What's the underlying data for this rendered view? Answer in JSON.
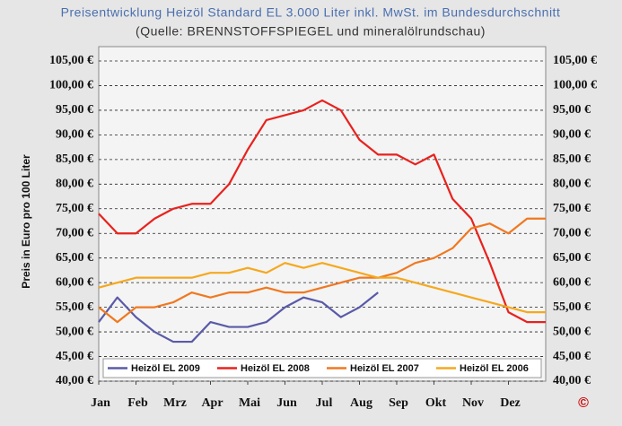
{
  "chart_data": {
    "type": "line",
    "title": "Preisentwicklung Heizöl Standard EL 3.000 Liter inkl. MwSt. im Bundesdurchschnitt",
    "subtitle": "(Quelle: BRENNSTOFFSPIEGEL und mineralölrundschau)",
    "y_label": "Preis in Euro pro 100 Liter",
    "logo_text": "©",
    "x": [
      0,
      0.5,
      1,
      1.5,
      2,
      2.5,
      3,
      3.5,
      4,
      4.5,
      5,
      5.5,
      6,
      6.5,
      7,
      7.5,
      8,
      8.5,
      9,
      9.5,
      10,
      10.5,
      11,
      11.5,
      12
    ],
    "xlim": [
      0,
      12
    ],
    "xticks": [
      {
        "value": 0,
        "label": "Jan"
      },
      {
        "value": 1,
        "label": "Feb"
      },
      {
        "value": 2,
        "label": "Mrz"
      },
      {
        "value": 3,
        "label": "Apr"
      },
      {
        "value": 4,
        "label": "Mai"
      },
      {
        "value": 5,
        "label": "Jun"
      },
      {
        "value": 6,
        "label": "Jul"
      },
      {
        "value": 7,
        "label": "Aug"
      },
      {
        "value": 8,
        "label": "Sep"
      },
      {
        "value": 9,
        "label": "Okt"
      },
      {
        "value": 10,
        "label": "Nov"
      },
      {
        "value": 11,
        "label": "Dez"
      }
    ],
    "ylim": [
      40,
      105
    ],
    "yticks": [
      {
        "value": 40,
        "label": "40,00 €"
      },
      {
        "value": 45,
        "label": "45,00 €"
      },
      {
        "value": 50,
        "label": "50,00 €"
      },
      {
        "value": 55,
        "label": "55,00 €"
      },
      {
        "value": 60,
        "label": "60,00 €"
      },
      {
        "value": 65,
        "label": "65,00 €"
      },
      {
        "value": 70,
        "label": "70,00 €"
      },
      {
        "value": 75,
        "label": "75,00 €"
      },
      {
        "value": 80,
        "label": "80,00 €"
      },
      {
        "value": 85,
        "label": "85,00 €"
      },
      {
        "value": 90,
        "label": "90,00 €"
      },
      {
        "value": 95,
        "label": "95,00 €"
      },
      {
        "value": 100,
        "label": "100,00 €"
      },
      {
        "value": 105,
        "label": "105,00 €"
      }
    ],
    "grid": true,
    "legend": "bottom",
    "series": [
      {
        "name": "Heizöl EL 2009",
        "color": "#5a5aa8",
        "values": [
          52,
          57,
          53,
          50,
          48,
          48,
          52,
          51,
          51,
          52,
          55,
          57,
          56,
          53,
          55,
          58,
          null,
          null,
          null,
          null,
          null,
          null,
          null,
          null,
          null
        ]
      },
      {
        "name": "Heizöl EL 2008",
        "color": "#e8221e",
        "values": [
          74,
          70,
          70,
          73,
          75,
          76,
          76,
          80,
          87,
          93,
          94,
          95,
          97,
          95,
          89,
          86,
          86,
          84,
          86,
          77,
          73,
          64,
          54,
          52,
          52
        ]
      },
      {
        "name": "Heizöl EL 2007",
        "color": "#f07820",
        "values": [
          55,
          52,
          55,
          55,
          56,
          58,
          57,
          58,
          58,
          59,
          58,
          58,
          59,
          60,
          61,
          61,
          62,
          64,
          65,
          67,
          71,
          72,
          70,
          73,
          73
        ]
      },
      {
        "name": "Heizöl EL 2006",
        "color": "#f5a81e",
        "values": [
          59,
          60,
          61,
          61,
          61,
          61,
          62,
          62,
          63,
          62,
          64,
          63,
          64,
          63,
          62,
          61,
          61,
          60,
          59,
          58,
          57,
          56,
          55,
          54,
          54
        ]
      }
    ]
  }
}
